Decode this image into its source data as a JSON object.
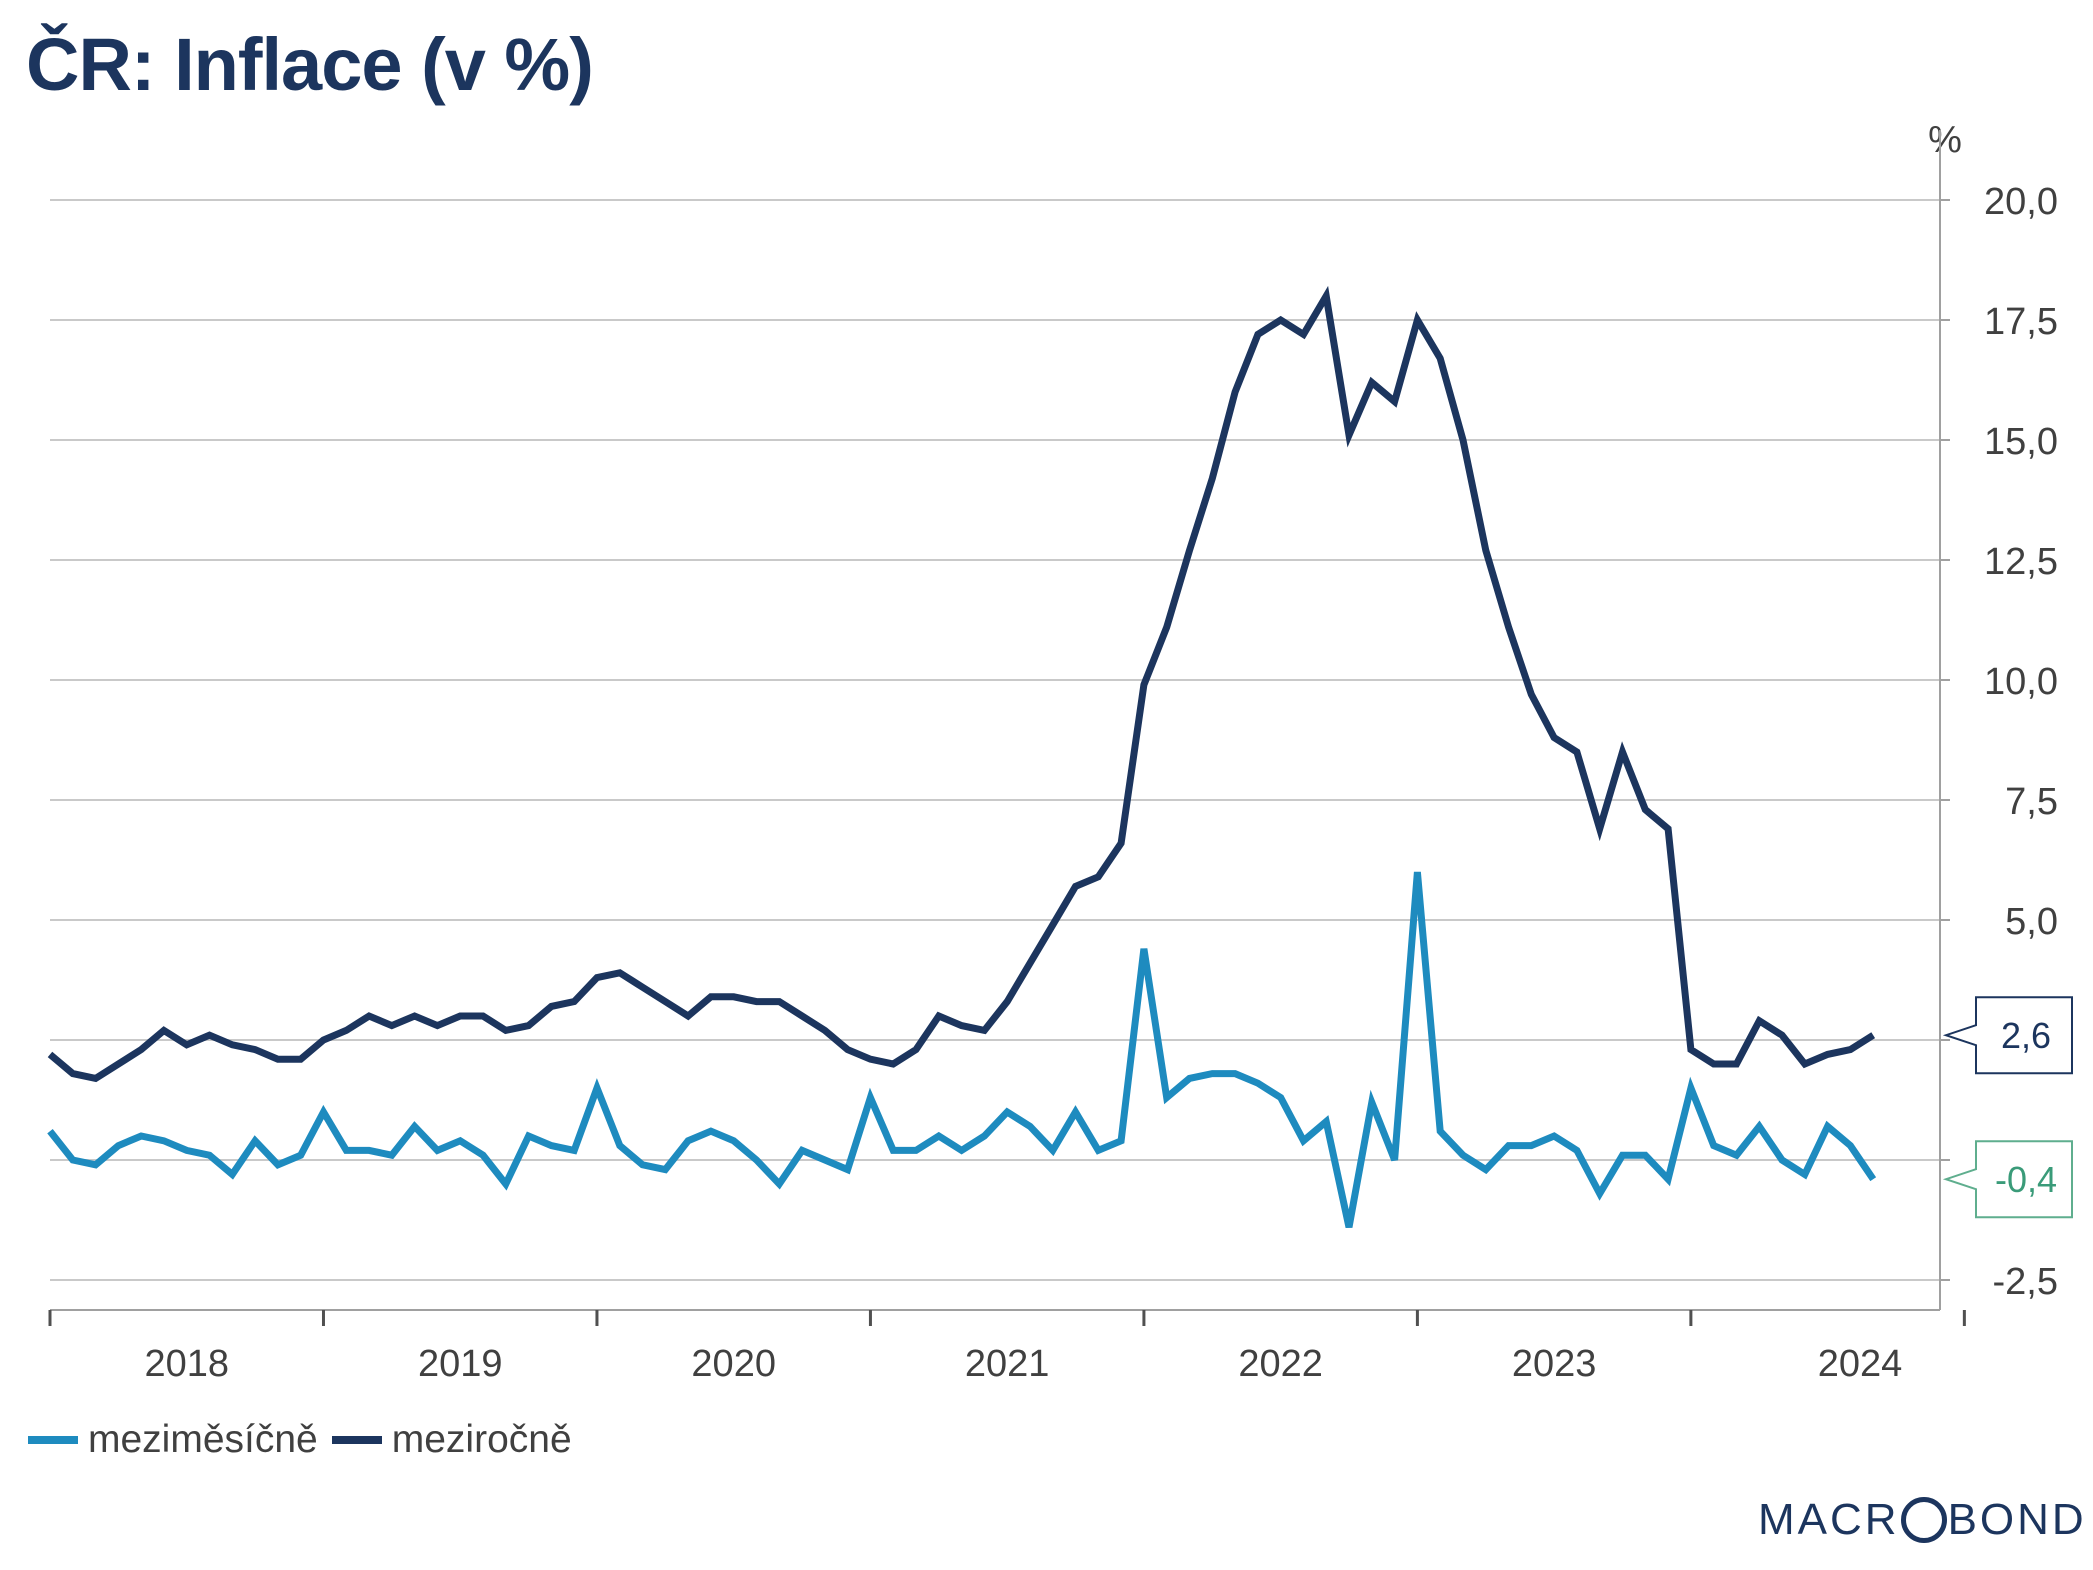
{
  "chart_data": {
    "type": "line",
    "title": "ČR: Inflace (v %)",
    "unit_label": "%",
    "ylim": [
      -3.0,
      20.5
    ],
    "y_ticks": [
      20.0,
      17.5,
      15.0,
      12.5,
      10.0,
      7.5,
      5.0,
      2.5,
      0.0,
      -2.5
    ],
    "y_tick_labels": [
      "20,0",
      "17,5",
      "15,0",
      "12,5",
      "10,0",
      "7,5",
      "5,0",
      "",
      "",
      "-2,5"
    ],
    "x_start": "2018-01",
    "x_year_labels": [
      "2018",
      "2019",
      "2020",
      "2021",
      "2022",
      "2023",
      "2024"
    ],
    "legend_position": "bottom-left",
    "series": [
      {
        "name": "meziměsíčně",
        "color": "#1e8bbf",
        "last_value_label": "-0,4",
        "label_border": "#5fae8e",
        "label_text": "#3a9b79",
        "values": [
          0.6,
          0.0,
          -0.1,
          0.3,
          0.5,
          0.4,
          0.2,
          0.1,
          -0.3,
          0.4,
          -0.1,
          0.1,
          1.0,
          0.2,
          0.2,
          0.1,
          0.7,
          0.2,
          0.4,
          0.1,
          -0.5,
          0.5,
          0.3,
          0.2,
          1.5,
          0.3,
          -0.1,
          -0.2,
          0.4,
          0.6,
          0.4,
          0.0,
          -0.5,
          0.2,
          0.0,
          -0.2,
          1.3,
          0.2,
          0.2,
          0.5,
          0.2,
          0.5,
          1.0,
          0.7,
          0.2,
          1.0,
          0.2,
          0.4,
          4.4,
          1.3,
          1.7,
          1.8,
          1.8,
          1.6,
          1.3,
          0.4,
          0.8,
          -1.4,
          1.2,
          0.0,
          6.0,
          0.6,
          0.1,
          -0.2,
          0.3,
          0.3,
          0.5,
          0.2,
          -0.7,
          0.1,
          0.1,
          -0.4,
          1.5,
          0.3,
          0.1,
          0.7,
          0.0,
          -0.3,
          0.7,
          0.3,
          -0.4
        ]
      },
      {
        "name": "meziročně",
        "color": "#1c355e",
        "last_value_label": "2,6",
        "label_border": "#1c355e",
        "label_text": "#1c355e",
        "values": [
          2.2,
          1.8,
          1.7,
          2.0,
          2.3,
          2.7,
          2.4,
          2.6,
          2.4,
          2.3,
          2.1,
          2.1,
          2.5,
          2.7,
          3.0,
          2.8,
          3.0,
          2.8,
          3.0,
          3.0,
          2.7,
          2.8,
          3.2,
          3.3,
          3.8,
          3.9,
          3.6,
          3.3,
          3.0,
          3.4,
          3.4,
          3.3,
          3.3,
          3.0,
          2.7,
          2.3,
          2.1,
          2.0,
          2.3,
          3.0,
          2.8,
          2.7,
          3.3,
          4.1,
          4.9,
          5.7,
          5.9,
          6.6,
          9.9,
          11.1,
          12.7,
          14.2,
          16.0,
          17.2,
          17.5,
          17.2,
          18.0,
          15.1,
          16.2,
          15.8,
          17.5,
          16.7,
          15.0,
          12.7,
          11.1,
          9.7,
          8.8,
          8.5,
          6.9,
          8.5,
          7.3,
          6.9,
          2.3,
          2.0,
          2.0,
          2.9,
          2.6,
          2.0,
          2.2,
          2.3,
          2.6
        ]
      }
    ]
  },
  "legend": {
    "items": [
      "meziměsíčně",
      "meziročně"
    ]
  },
  "brand": {
    "logo_text": "MACROBOND",
    "logo_left": "MACR",
    "logo_right": "BOND"
  }
}
